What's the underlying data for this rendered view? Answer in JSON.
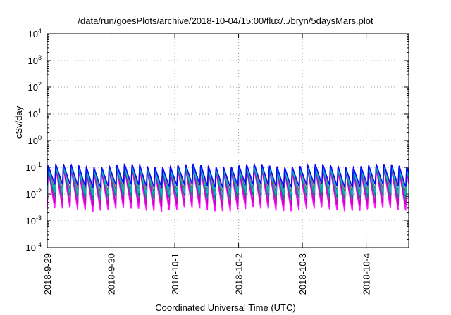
{
  "chart_data": {
    "type": "area",
    "title": "/data/run/goesPlots/archive/2018-10-04/15:00/flux/../bryn/5daysMars.plot",
    "xlabel": "Coordinated Universal Time (UTC)",
    "ylabel": "cSv/day",
    "y_scale": "log",
    "ylim": [
      0.0001,
      10000
    ],
    "xlim": [
      "2018-09-29 00:00",
      "2018-10-04 16:00"
    ],
    "grid": true,
    "y_ticks": [
      {
        "base": "10",
        "exp": "-4"
      },
      {
        "base": "10",
        "exp": "-3"
      },
      {
        "base": "10",
        "exp": "-2"
      },
      {
        "base": "10",
        "exp": "-1"
      },
      {
        "base": "10",
        "exp": "0"
      },
      {
        "base": "10",
        "exp": "1"
      },
      {
        "base": "10",
        "exp": "2"
      },
      {
        "base": "10",
        "exp": "3"
      },
      {
        "base": "10",
        "exp": "4"
      }
    ],
    "x_ticks": [
      "2018-9-29",
      "2018-9-30",
      "2018-10-1",
      "2018-10-2",
      "2018-10-3",
      "2018-10-4"
    ],
    "oscillation": {
      "period_hours": 2.87,
      "peak": 0.12,
      "trough_low": 0.002,
      "trough_high": 0.03
    },
    "series": [
      {
        "color": "#ff00ff",
        "peak": 0.085,
        "trough": 0.0025
      },
      {
        "color": "#c000c0",
        "peak": 0.09,
        "trough": 0.004
      },
      {
        "color": "#d00000",
        "peak": 0.11,
        "trough": 0.012
      },
      {
        "color": "#008080",
        "peak": 0.1,
        "trough": 0.007
      },
      {
        "color": "#00c0c0",
        "peak": 0.105,
        "trough": 0.01
      },
      {
        "color": "#0000ff",
        "peak": 0.12,
        "trough": 0.02
      }
    ]
  }
}
